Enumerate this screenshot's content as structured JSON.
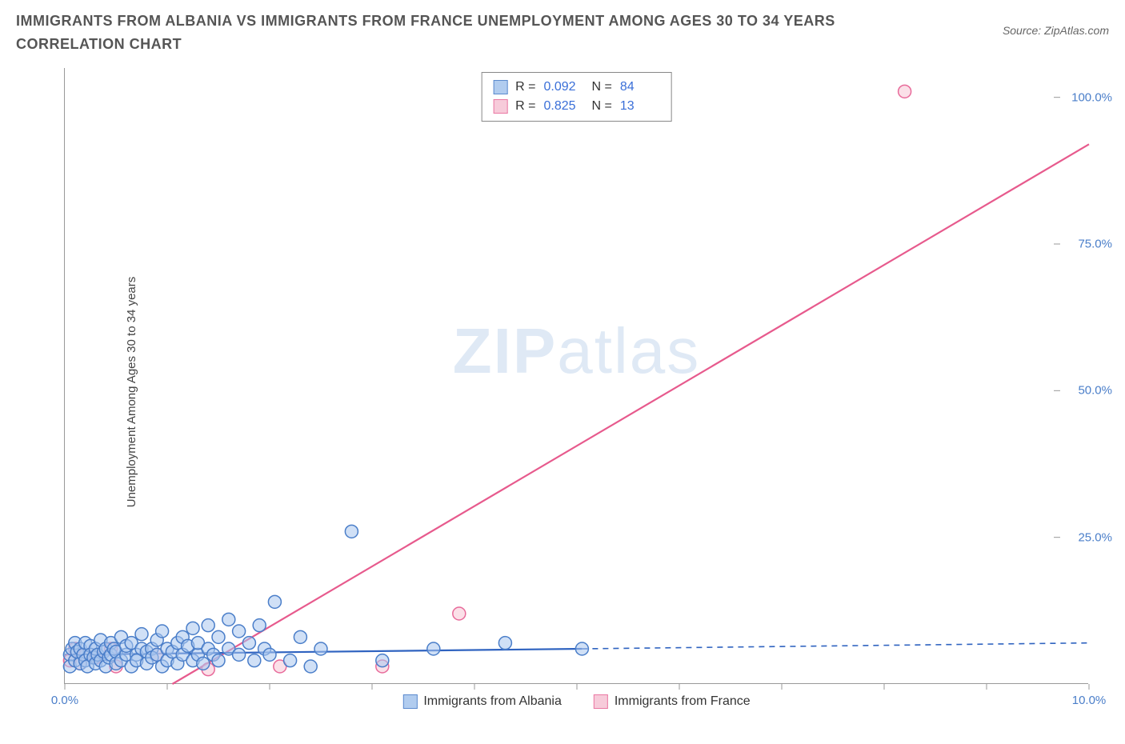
{
  "title": "IMMIGRANTS FROM ALBANIA VS IMMIGRANTS FROM FRANCE UNEMPLOYMENT AMONG AGES 30 TO 34 YEARS CORRELATION CHART",
  "source": "Source: ZipAtlas.com",
  "watermark_a": "ZIP",
  "watermark_b": "atlas",
  "chart": {
    "type": "scatter",
    "y_label": "Unemployment Among Ages 30 to 34 years",
    "xlim": [
      0,
      10
    ],
    "ylim": [
      0,
      105
    ],
    "x_ticks": [
      0,
      1,
      2,
      3,
      4,
      5,
      6,
      7,
      8,
      9,
      10
    ],
    "x_tick_labels": {
      "0": "0.0%",
      "10": "10.0%"
    },
    "y_ticks": [
      25,
      50,
      75,
      100
    ],
    "y_tick_labels": {
      "25": "25.0%",
      "50": "50.0%",
      "75": "75.0%",
      "100": "100.0%"
    },
    "marker_radius": 8,
    "marker_stroke_width": 1.5,
    "background_color": "#ffffff",
    "series": {
      "albania": {
        "label": "Immigrants from Albania",
        "fill": "#a9c7ee",
        "stroke": "#4a7ec9",
        "fill_opacity": 0.55,
        "R": "0.092",
        "N": "84",
        "trend": {
          "x1": 0,
          "y1": 5.0,
          "x2": 5.05,
          "y2": 6.0,
          "color": "#2f63c0",
          "width": 2.2
        },
        "trend_ext": {
          "x1": 5.05,
          "y1": 6.0,
          "x2": 10,
          "y2": 7.0,
          "color": "#2f63c0",
          "width": 1.6,
          "dash": "7,6"
        },
        "points": [
          [
            0.05,
            5
          ],
          [
            0.05,
            3
          ],
          [
            0.07,
            6
          ],
          [
            0.1,
            4
          ],
          [
            0.1,
            7
          ],
          [
            0.12,
            5.5
          ],
          [
            0.15,
            3.5
          ],
          [
            0.15,
            6
          ],
          [
            0.18,
            5
          ],
          [
            0.2,
            4
          ],
          [
            0.2,
            7
          ],
          [
            0.22,
            3
          ],
          [
            0.25,
            6.5
          ],
          [
            0.25,
            5
          ],
          [
            0.28,
            4.5
          ],
          [
            0.3,
            6
          ],
          [
            0.3,
            3.5
          ],
          [
            0.32,
            5
          ],
          [
            0.35,
            7.5
          ],
          [
            0.35,
            4
          ],
          [
            0.38,
            5.5
          ],
          [
            0.4,
            6
          ],
          [
            0.4,
            3
          ],
          [
            0.43,
            4.5
          ],
          [
            0.45,
            7
          ],
          [
            0.45,
            5
          ],
          [
            0.48,
            6
          ],
          [
            0.5,
            3.5
          ],
          [
            0.5,
            5.5
          ],
          [
            0.55,
            4
          ],
          [
            0.55,
            8
          ],
          [
            0.6,
            5
          ],
          [
            0.6,
            6.5
          ],
          [
            0.65,
            3
          ],
          [
            0.65,
            7
          ],
          [
            0.7,
            5
          ],
          [
            0.7,
            4
          ],
          [
            0.75,
            6
          ],
          [
            0.75,
            8.5
          ],
          [
            0.8,
            3.5
          ],
          [
            0.8,
            5.5
          ],
          [
            0.85,
            6
          ],
          [
            0.85,
            4.5
          ],
          [
            0.9,
            7.5
          ],
          [
            0.9,
            5
          ],
          [
            0.95,
            3
          ],
          [
            0.95,
            9
          ],
          [
            1.0,
            6
          ],
          [
            1.0,
            4
          ],
          [
            1.05,
            5.5
          ],
          [
            1.1,
            7
          ],
          [
            1.1,
            3.5
          ],
          [
            1.15,
            8
          ],
          [
            1.15,
            5
          ],
          [
            1.2,
            6.5
          ],
          [
            1.25,
            4
          ],
          [
            1.25,
            9.5
          ],
          [
            1.3,
            5
          ],
          [
            1.3,
            7
          ],
          [
            1.35,
            3.5
          ],
          [
            1.4,
            6
          ],
          [
            1.4,
            10
          ],
          [
            1.45,
            5
          ],
          [
            1.5,
            8
          ],
          [
            1.5,
            4
          ],
          [
            1.6,
            11
          ],
          [
            1.6,
            6
          ],
          [
            1.7,
            5
          ],
          [
            1.7,
            9
          ],
          [
            1.8,
            7
          ],
          [
            1.85,
            4
          ],
          [
            1.9,
            10
          ],
          [
            1.95,
            6
          ],
          [
            2.0,
            5
          ],
          [
            2.05,
            14
          ],
          [
            2.2,
            4
          ],
          [
            2.3,
            8
          ],
          [
            2.4,
            3
          ],
          [
            2.5,
            6
          ],
          [
            2.8,
            26
          ],
          [
            3.1,
            4
          ],
          [
            3.6,
            6
          ],
          [
            4.3,
            7
          ],
          [
            5.05,
            6
          ]
        ]
      },
      "france": {
        "label": "Immigrants from France",
        "fill": "#f7c6d6",
        "stroke": "#e86a9a",
        "fill_opacity": 0.55,
        "R": "0.825",
        "N": "13",
        "trend": {
          "x1": 1.05,
          "y1": 0,
          "x2": 10,
          "y2": 92,
          "color": "#e75a8d",
          "width": 2.2
        },
        "points": [
          [
            0.05,
            4
          ],
          [
            0.1,
            6
          ],
          [
            0.15,
            3.5
          ],
          [
            0.2,
            5
          ],
          [
            0.3,
            4.5
          ],
          [
            0.45,
            6
          ],
          [
            0.5,
            3
          ],
          [
            0.9,
            5
          ],
          [
            1.4,
            2.5
          ],
          [
            2.1,
            3
          ],
          [
            3.1,
            3
          ],
          [
            3.85,
            12
          ],
          [
            8.2,
            101
          ]
        ]
      }
    },
    "legend_top": {
      "R_label": "R =",
      "N_label": "N ="
    }
  }
}
